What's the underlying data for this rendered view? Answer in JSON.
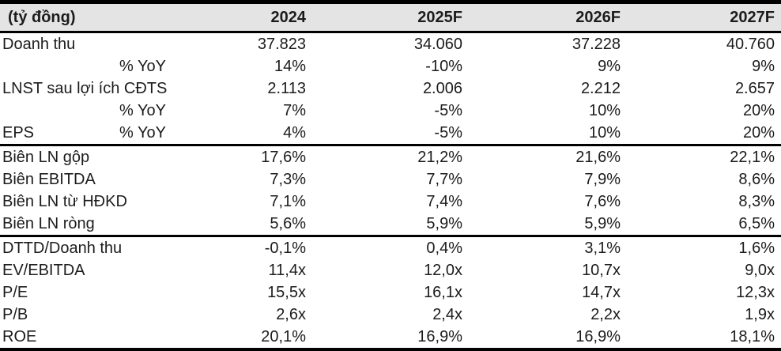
{
  "table": {
    "title_note": "Financial forecast table",
    "header": {
      "columns": [
        "(tỷ đồng)",
        "2024",
        "2025F",
        "2026F",
        "2027F"
      ]
    },
    "rows": [
      {
        "label": "Doanh thu",
        "sublabel": "",
        "values": [
          "37.823",
          "34.060",
          "37.228",
          "40.760"
        ],
        "divider_after": false
      },
      {
        "label": "",
        "sublabel": "% YoY",
        "values": [
          "14%",
          "-10%",
          "9%",
          "9%"
        ],
        "divider_after": false
      },
      {
        "label": "LNST sau lợi ích CĐTS",
        "sublabel": "",
        "values": [
          "2.113",
          "2.006",
          "2.212",
          "2.657"
        ],
        "divider_after": false
      },
      {
        "label": "",
        "sublabel": "% YoY",
        "values": [
          "7%",
          "-5%",
          "10%",
          "20%"
        ],
        "divider_after": false
      },
      {
        "label": "EPS",
        "sublabel": "% YoY",
        "values": [
          "4%",
          "-5%",
          "10%",
          "20%"
        ],
        "divider_after": true
      },
      {
        "label": "Biên LN gộp",
        "sublabel": "",
        "values": [
          "17,6%",
          "21,2%",
          "21,6%",
          "22,1%"
        ],
        "divider_after": false
      },
      {
        "label": "Biên EBITDA",
        "sublabel": "",
        "values": [
          "7,3%",
          "7,7%",
          "7,9%",
          "8,6%"
        ],
        "divider_after": false
      },
      {
        "label": "Biên LN từ HĐKD",
        "sublabel": "",
        "values": [
          "7,1%",
          "7,4%",
          "7,6%",
          "8,3%"
        ],
        "divider_after": false
      },
      {
        "label": "Biên LN ròng",
        "sublabel": "",
        "values": [
          "5,6%",
          "5,9%",
          "5,9%",
          "6,5%"
        ],
        "divider_after": true
      },
      {
        "label": "DTTD/Doanh thu",
        "sublabel": "",
        "values": [
          "-0,1%",
          "0,4%",
          "3,1%",
          "1,6%"
        ],
        "divider_after": false
      },
      {
        "label": "EV/EBITDA",
        "sublabel": "",
        "values": [
          "11,4x",
          "12,0x",
          "10,7x",
          "9,0x"
        ],
        "divider_after": false
      },
      {
        "label": "P/E",
        "sublabel": "",
        "values": [
          "15,5x",
          "16,1x",
          "14,7x",
          "12,3x"
        ],
        "divider_after": false
      },
      {
        "label": "P/B",
        "sublabel": "",
        "values": [
          "2,6x",
          "2,4x",
          "2,2x",
          "1,9x"
        ],
        "divider_after": false
      },
      {
        "label": "ROE",
        "sublabel": "",
        "values": [
          "20,1%",
          "16,9%",
          "16,9%",
          "18,1%"
        ],
        "divider_after": false
      }
    ]
  },
  "colors": {
    "header_bg": "#e4e4e4",
    "border": "#000000",
    "text": "#1c1c1c"
  }
}
